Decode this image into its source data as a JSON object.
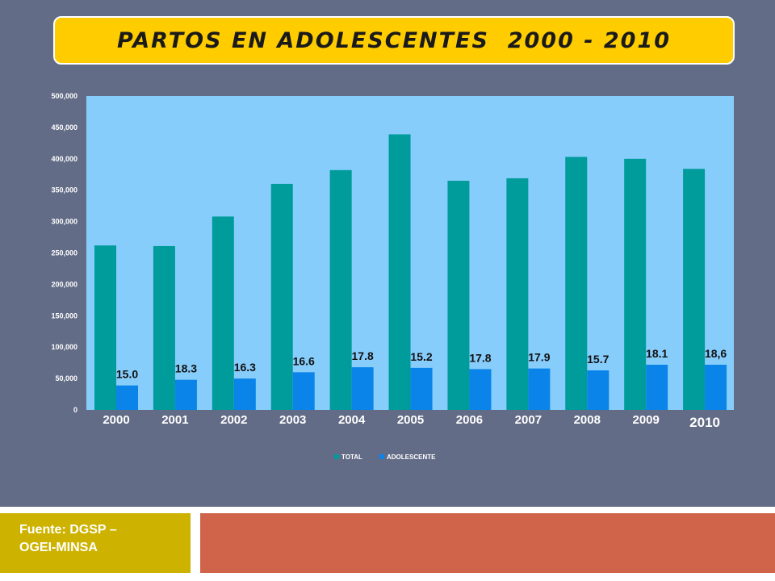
{
  "title": "PARTOS EN ADOLESCENTES  2000 - 2010",
  "source": "Fuente: DGSP – OGEI-MINSA",
  "colors": {
    "slide_bg": "#636c86",
    "plot_bg": "#87cdfc",
    "total": "#009b9b",
    "adolescente": "#0a84e8",
    "title_bg": "#ffcc00",
    "source_bg": "#cdb300",
    "accent_red": "#d0644a"
  },
  "chart_data": {
    "type": "bar",
    "categories": [
      "2000",
      "2001",
      "2002",
      "2003",
      "2004",
      "2005",
      "2006",
      "2007",
      "2008",
      "2009",
      "2010"
    ],
    "series": [
      {
        "name": "TOTAL",
        "values": [
          262000,
          261000,
          308000,
          360000,
          382000,
          439000,
          365000,
          369000,
          403000,
          400000,
          384000
        ]
      },
      {
        "name": "ADOLESCENTE",
        "values": [
          39000,
          48000,
          50000,
          60000,
          68000,
          67000,
          65000,
          66000,
          63000,
          72000,
          72000
        ]
      }
    ],
    "data_labels": [
      "15.0",
      "18.3",
      "16.3",
      "16.6",
      "17.8",
      "15.2",
      "17.8",
      "17.9",
      "15.7",
      "18.1",
      "18,6"
    ],
    "yticks": [
      "0",
      "50,000",
      "100,000",
      "150,000",
      "200,000",
      "250,000",
      "300,000",
      "350,000",
      "400,000",
      "450,000",
      "500,000"
    ],
    "ylim": [
      0,
      500000
    ],
    "grid": false,
    "legend_position": "bottom"
  }
}
